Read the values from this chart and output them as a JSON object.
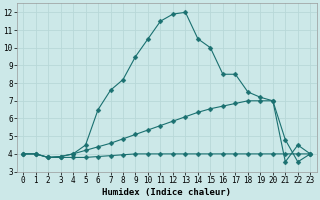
{
  "xlabel": "Humidex (Indice chaleur)",
  "xlim": [
    -0.5,
    23.5
  ],
  "ylim": [
    3,
    12.5
  ],
  "xticks": [
    0,
    1,
    2,
    3,
    4,
    5,
    6,
    7,
    8,
    9,
    10,
    11,
    12,
    13,
    14,
    15,
    16,
    17,
    18,
    19,
    20,
    21,
    22,
    23
  ],
  "yticks": [
    3,
    4,
    5,
    6,
    7,
    8,
    9,
    10,
    11,
    12
  ],
  "background_color": "#cce8e8",
  "grid_color": "#b8d8d8",
  "line_color": "#1a7070",
  "s1_x": [
    0,
    1,
    2,
    3,
    4,
    5,
    6,
    7,
    8,
    9,
    10,
    11,
    12,
    13,
    14,
    15,
    16,
    17,
    18,
    19,
    20,
    21,
    22,
    23
  ],
  "s1_y": [
    4.0,
    4.0,
    3.8,
    3.8,
    3.8,
    3.8,
    3.85,
    3.9,
    3.95,
    4.0,
    4.0,
    4.0,
    4.0,
    4.0,
    4.0,
    4.0,
    4.0,
    4.0,
    4.0,
    4.0,
    4.0,
    4.0,
    4.0,
    4.0
  ],
  "s2_x": [
    0,
    1,
    2,
    3,
    4,
    5,
    6,
    7,
    8,
    9,
    10,
    11,
    12,
    13,
    14,
    15,
    16,
    17,
    18,
    19,
    20,
    21,
    22,
    23
  ],
  "s2_y": [
    4.0,
    4.0,
    3.8,
    3.85,
    4.0,
    4.2,
    4.4,
    4.6,
    4.85,
    5.1,
    5.35,
    5.6,
    5.85,
    6.1,
    6.35,
    6.55,
    6.7,
    6.85,
    7.0,
    7.0,
    7.0,
    3.55,
    4.5,
    4.0
  ],
  "s3_x": [
    0,
    1,
    2,
    3,
    4,
    5,
    6,
    7,
    8,
    9,
    10,
    11,
    12,
    13,
    14,
    15,
    16,
    17,
    18,
    19,
    20,
    21,
    22,
    23
  ],
  "s3_y": [
    4.0,
    4.0,
    3.8,
    3.85,
    4.0,
    4.5,
    6.5,
    7.6,
    8.2,
    9.5,
    10.5,
    11.5,
    11.9,
    12.0,
    10.5,
    10.0,
    8.5,
    8.5,
    7.5,
    7.2,
    7.0,
    4.8,
    3.55,
    4.0
  ],
  "markersize": 2.5
}
